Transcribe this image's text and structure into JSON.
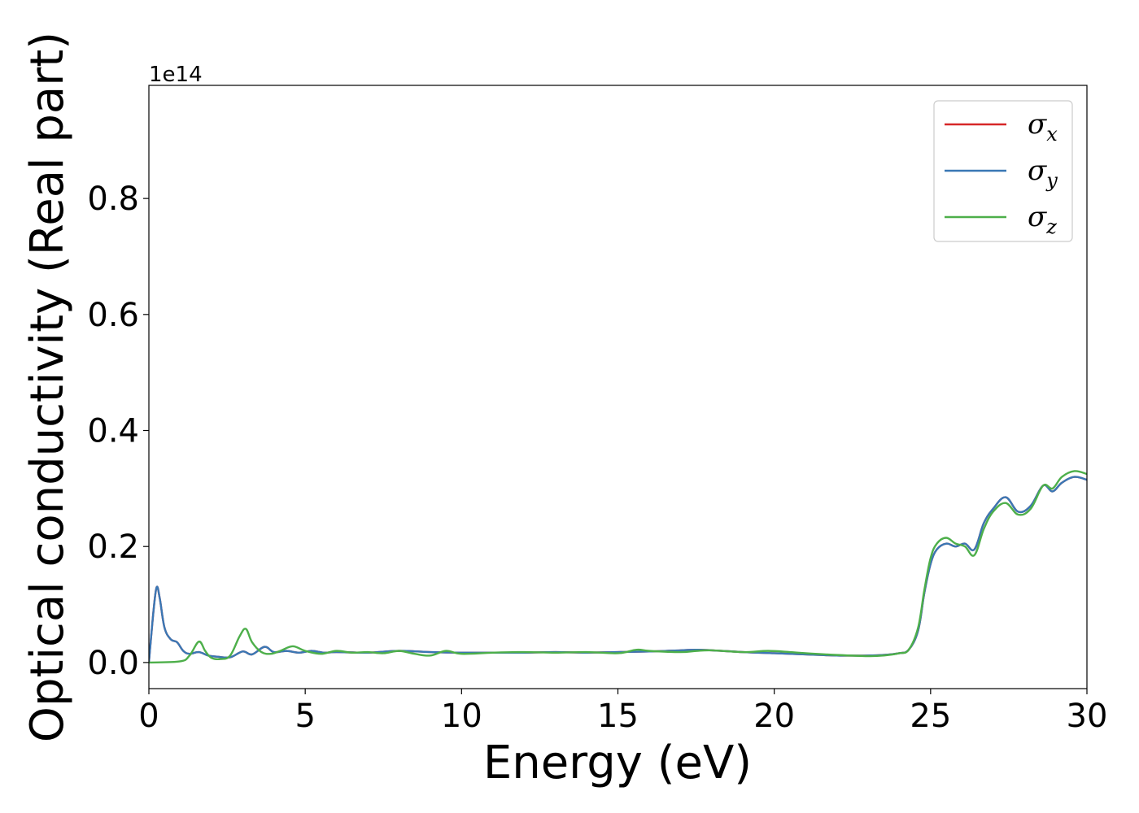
{
  "chart_data": {
    "type": "line",
    "xlabel": "Energy (eV)",
    "ylabel": "Optical conductivity (Real part)",
    "y_offset_text": "1e14",
    "y_scale": 100000000000000.0,
    "xlim": [
      0,
      30
    ],
    "ylim": [
      -0.045,
      0.995
    ],
    "x_ticks": [
      0,
      5,
      10,
      15,
      20,
      25,
      30
    ],
    "y_ticks": [
      0.0,
      0.2,
      0.4,
      0.6,
      0.8
    ],
    "x_tick_labels": [
      "0",
      "5",
      "10",
      "15",
      "20",
      "25",
      "30"
    ],
    "y_tick_labels": [
      "0.0",
      "0.2",
      "0.4",
      "0.6",
      "0.8"
    ],
    "grid": false,
    "legend_position": "top-right",
    "series": [
      {
        "name": "σ",
        "subscript": "x",
        "color": "#d62728",
        "x": [
          0,
          0.15,
          0.25,
          0.35,
          0.5,
          0.7,
          0.9,
          1.1,
          1.3,
          1.6,
          1.9,
          2.2,
          2.6,
          3.0,
          3.3,
          3.7,
          4.0,
          4.4,
          4.8,
          5.2,
          5.6,
          6.0,
          7,
          8,
          9,
          10,
          11,
          12,
          13,
          14,
          15,
          16,
          17,
          17.5,
          18,
          19,
          20,
          21,
          22,
          23,
          23.5,
          24,
          24.3,
          24.6,
          24.8,
          25.0,
          25.2,
          25.5,
          25.8,
          26.1,
          26.4,
          26.7,
          27.0,
          27.4,
          27.8,
          28.2,
          28.6,
          28.9,
          29.2,
          29.6,
          30.0
        ],
        "y": [
          0.0,
          0.09,
          0.13,
          0.11,
          0.06,
          0.04,
          0.035,
          0.02,
          0.015,
          0.018,
          0.012,
          0.01,
          0.009,
          0.019,
          0.014,
          0.027,
          0.018,
          0.02,
          0.017,
          0.02,
          0.017,
          0.018,
          0.017,
          0.02,
          0.018,
          0.017,
          0.017,
          0.017,
          0.018,
          0.017,
          0.018,
          0.019,
          0.021,
          0.022,
          0.021,
          0.018,
          0.016,
          0.014,
          0.012,
          0.012,
          0.013,
          0.016,
          0.022,
          0.055,
          0.12,
          0.17,
          0.195,
          0.205,
          0.2,
          0.205,
          0.195,
          0.24,
          0.265,
          0.285,
          0.26,
          0.27,
          0.305,
          0.295,
          0.31,
          0.32,
          0.315
        ]
      },
      {
        "name": "σ",
        "subscript": "y",
        "color": "#3a78b5",
        "x": [
          0,
          0.15,
          0.25,
          0.35,
          0.5,
          0.7,
          0.9,
          1.1,
          1.3,
          1.6,
          1.9,
          2.2,
          2.6,
          3.0,
          3.3,
          3.7,
          4.0,
          4.4,
          4.8,
          5.2,
          5.6,
          6.0,
          7,
          8,
          9,
          10,
          11,
          12,
          13,
          14,
          15,
          16,
          17,
          17.5,
          18,
          19,
          20,
          21,
          22,
          23,
          23.5,
          24,
          24.3,
          24.6,
          24.8,
          25.0,
          25.2,
          25.5,
          25.8,
          26.1,
          26.4,
          26.7,
          27.0,
          27.4,
          27.8,
          28.2,
          28.6,
          28.9,
          29.2,
          29.6,
          30.0
        ],
        "y": [
          0.0,
          0.09,
          0.13,
          0.11,
          0.06,
          0.04,
          0.035,
          0.02,
          0.015,
          0.018,
          0.012,
          0.01,
          0.009,
          0.019,
          0.014,
          0.027,
          0.018,
          0.02,
          0.017,
          0.02,
          0.017,
          0.018,
          0.017,
          0.02,
          0.018,
          0.017,
          0.017,
          0.017,
          0.018,
          0.017,
          0.018,
          0.019,
          0.021,
          0.022,
          0.021,
          0.018,
          0.016,
          0.014,
          0.012,
          0.012,
          0.013,
          0.016,
          0.022,
          0.055,
          0.12,
          0.17,
          0.195,
          0.205,
          0.2,
          0.205,
          0.195,
          0.24,
          0.265,
          0.285,
          0.26,
          0.27,
          0.305,
          0.295,
          0.31,
          0.32,
          0.315
        ]
      },
      {
        "name": "σ",
        "subscript": "z",
        "color": "#4daf4a",
        "x": [
          0,
          1.0,
          1.3,
          1.6,
          1.8,
          2.0,
          2.3,
          2.6,
          2.9,
          3.1,
          3.3,
          3.6,
          3.9,
          4.2,
          4.6,
          5.0,
          5.5,
          6.0,
          6.5,
          7,
          7.5,
          8,
          8.5,
          9,
          9.5,
          10,
          11,
          12,
          13,
          14,
          15,
          15.6,
          16,
          17,
          17.5,
          18,
          19,
          19.8,
          20.5,
          21,
          22,
          23,
          23.5,
          24,
          24.3,
          24.6,
          24.8,
          25.0,
          25.2,
          25.5,
          25.8,
          26.1,
          26.4,
          26.7,
          27.0,
          27.4,
          27.8,
          28.2,
          28.6,
          28.9,
          29.2,
          29.6,
          30.0
        ],
        "y": [
          0.0,
          0.002,
          0.012,
          0.036,
          0.02,
          0.008,
          0.006,
          0.012,
          0.045,
          0.058,
          0.035,
          0.018,
          0.015,
          0.02,
          0.028,
          0.02,
          0.015,
          0.02,
          0.017,
          0.018,
          0.016,
          0.02,
          0.015,
          0.012,
          0.02,
          0.015,
          0.017,
          0.018,
          0.017,
          0.018,
          0.016,
          0.022,
          0.02,
          0.018,
          0.02,
          0.021,
          0.018,
          0.02,
          0.018,
          0.016,
          0.013,
          0.011,
          0.012,
          0.016,
          0.022,
          0.06,
          0.125,
          0.18,
          0.205,
          0.215,
          0.205,
          0.2,
          0.185,
          0.23,
          0.26,
          0.275,
          0.255,
          0.265,
          0.305,
          0.3,
          0.32,
          0.33,
          0.325
        ]
      }
    ]
  }
}
